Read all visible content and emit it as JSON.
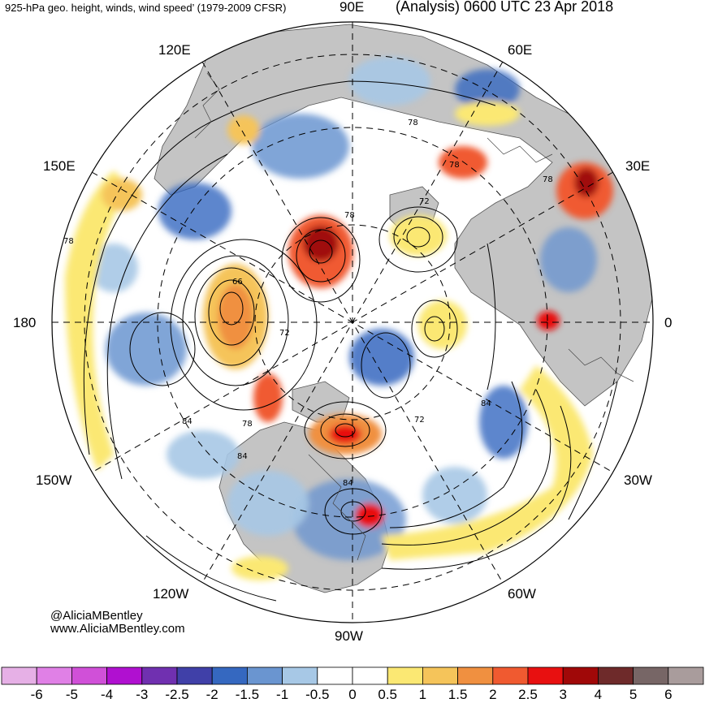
{
  "header": {
    "left_title": "925-hPa geo. height, winds, wind speed’ (1979-2009 CFSR)",
    "right_title": "(Analysis) 0600 UTC 23 Apr 2018"
  },
  "map": {
    "projection": "north-polar-stereographic",
    "lon_labels": {
      "lon_90e": "90E",
      "lon_60e": "60E",
      "lon_30e": "30E",
      "lon_0": "0",
      "lon_30w": "30W",
      "lon_60w": "60W",
      "lon_90w": "90W",
      "lon_120w": "120W",
      "lon_150w": "150W",
      "lon_180": "180",
      "lon_150e": "150E",
      "lon_120e": "120E"
    },
    "contour_labels": [
      "78",
      "78",
      "78",
      "78",
      "72",
      "66",
      "72",
      "84",
      "78",
      "84",
      "84",
      "72",
      "84",
      "78"
    ],
    "colors": {
      "land": "#c0c0c0",
      "contour": "#000000",
      "border": "#333333"
    }
  },
  "credits": {
    "twitter": "@AliciaMBentley",
    "website": "www.AliciaMBentley.com"
  },
  "colorbar": {
    "ticks": [
      "-6",
      "-5",
      "-4",
      "-3",
      "-2.5",
      "-2",
      "-1.5",
      "-1",
      "-0.5",
      "0",
      "0.5",
      "1",
      "1.5",
      "2",
      "2.5",
      "3",
      "4",
      "5",
      "6"
    ],
    "colors": [
      "#e6b0e6",
      "#e080e6",
      "#d050d8",
      "#b010d0",
      "#7030b0",
      "#4040a8",
      "#3568c0",
      "#6a95d0",
      "#a7c8e6",
      "#ffffff",
      "#ffffff",
      "#fbe873",
      "#f5c45a",
      "#f09040",
      "#f05a30",
      "#e81010",
      "#a00808",
      "#6e2a2a",
      "#776666",
      "#a99c9c"
    ]
  }
}
